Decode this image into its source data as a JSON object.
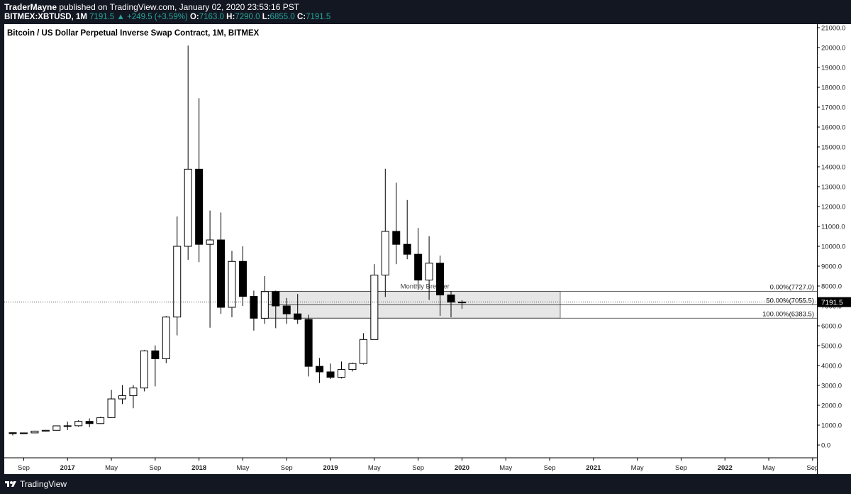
{
  "header": {
    "publisher": "TraderMayne",
    "published_text": "published on TradingView.com, January 02, 2020 23:53:16 PST",
    "symbol": "BITMEX:XBTUSD, 1M",
    "last": "7191.5",
    "change": "+249.5 (+3.59%)",
    "open_label": "O:",
    "open": "7163.0",
    "high_label": "H:",
    "high": "7290.0",
    "low_label": "L:",
    "low": "6855.0",
    "close_label": "C:",
    "close": "7191.5"
  },
  "footer": {
    "brand": "TradingView"
  },
  "colors": {
    "bull": "#ffffff",
    "bear": "#000000",
    "zone": "#e6e6e6",
    "price_tag": "#000000",
    "header_green": "#26a69a"
  },
  "chart_data": {
    "type": "candlestick",
    "title": "Bitcoin / US Dollar Perpetual Inverse Swap Contract, 1M, BITMEX",
    "ylim": [
      -500,
      21000
    ],
    "y_ticks": [
      "21000.0",
      "20000.0",
      "19000.0",
      "18000.0",
      "17000.0",
      "16000.0",
      "15000.0",
      "14000.0",
      "13000.0",
      "12000.0",
      "11000.0",
      "10000.0",
      "9000.0",
      "8000.0",
      "7000.0",
      "6000.0",
      "5000.0",
      "4000.0",
      "3000.0",
      "2000.0",
      "1000.0",
      "0.0"
    ],
    "x_ticks": [
      "Sep",
      "2017",
      "May",
      "Sep",
      "2018",
      "May",
      "Sep",
      "2019",
      "May",
      "Sep",
      "2020",
      "May",
      "Sep",
      "2021",
      "May",
      "Sep",
      "2022",
      "May",
      "Sep"
    ],
    "last_price": 7191.5,
    "last_price_label": "7191.5",
    "candles": [
      {
        "m": "2016-08",
        "o": 620,
        "h": 630,
        "l": 480,
        "c": 575
      },
      {
        "m": "2016-09",
        "o": 575,
        "h": 625,
        "l": 560,
        "c": 610
      },
      {
        "m": "2016-10",
        "o": 610,
        "h": 720,
        "l": 600,
        "c": 700
      },
      {
        "m": "2016-11",
        "o": 700,
        "h": 760,
        "l": 680,
        "c": 740
      },
      {
        "m": "2016-12",
        "o": 740,
        "h": 980,
        "l": 740,
        "c": 965
      },
      {
        "m": "2017-01",
        "o": 965,
        "h": 1180,
        "l": 750,
        "c": 970
      },
      {
        "m": "2017-02",
        "o": 970,
        "h": 1250,
        "l": 920,
        "c": 1190
      },
      {
        "m": "2017-03",
        "o": 1190,
        "h": 1340,
        "l": 900,
        "c": 1080
      },
      {
        "m": "2017-04",
        "o": 1080,
        "h": 1420,
        "l": 1060,
        "c": 1380
      },
      {
        "m": "2017-05",
        "o": 1380,
        "h": 2780,
        "l": 1360,
        "c": 2320
      },
      {
        "m": "2017-06",
        "o": 2320,
        "h": 3020,
        "l": 2060,
        "c": 2480
      },
      {
        "m": "2017-07",
        "o": 2480,
        "h": 3020,
        "l": 1850,
        "c": 2870
      },
      {
        "m": "2017-08",
        "o": 2870,
        "h": 4780,
        "l": 2700,
        "c": 4740
      },
      {
        "m": "2017-09",
        "o": 4740,
        "h": 5010,
        "l": 2950,
        "c": 4340
      },
      {
        "m": "2017-10",
        "o": 4340,
        "h": 6490,
        "l": 4120,
        "c": 6440
      },
      {
        "m": "2017-11",
        "o": 6440,
        "h": 11500,
        "l": 5520,
        "c": 10000
      },
      {
        "m": "2017-12",
        "o": 10000,
        "h": 20100,
        "l": 9320,
        "c": 13880
      },
      {
        "m": "2018-01",
        "o": 13880,
        "h": 17450,
        "l": 9200,
        "c": 10100
      },
      {
        "m": "2018-02",
        "o": 10100,
        "h": 11800,
        "l": 5900,
        "c": 10320
      },
      {
        "m": "2018-03",
        "o": 10320,
        "h": 11700,
        "l": 6600,
        "c": 6930
      },
      {
        "m": "2018-04",
        "o": 6930,
        "h": 9770,
        "l": 6430,
        "c": 9240
      },
      {
        "m": "2018-05",
        "o": 9240,
        "h": 10000,
        "l": 7000,
        "c": 7480
      },
      {
        "m": "2018-06",
        "o": 7480,
        "h": 7770,
        "l": 5760,
        "c": 6380
      },
      {
        "m": "2018-07",
        "o": 6380,
        "h": 8500,
        "l": 6100,
        "c": 7720
      },
      {
        "m": "2018-08",
        "o": 7720,
        "h": 7770,
        "l": 5880,
        "c": 7000
      },
      {
        "m": "2018-09",
        "o": 7000,
        "h": 7400,
        "l": 6100,
        "c": 6600
      },
      {
        "m": "2018-10",
        "o": 6600,
        "h": 7600,
        "l": 6100,
        "c": 6320
      },
      {
        "m": "2018-11",
        "o": 6320,
        "h": 6560,
        "l": 3450,
        "c": 3960
      },
      {
        "m": "2018-12",
        "o": 3960,
        "h": 4380,
        "l": 3120,
        "c": 3680
      },
      {
        "m": "2019-01",
        "o": 3680,
        "h": 4100,
        "l": 3320,
        "c": 3410
      },
      {
        "m": "2019-02",
        "o": 3410,
        "h": 4200,
        "l": 3350,
        "c": 3800
      },
      {
        "m": "2019-03",
        "o": 3800,
        "h": 4150,
        "l": 3700,
        "c": 4100
      },
      {
        "m": "2019-04",
        "o": 4100,
        "h": 5630,
        "l": 4050,
        "c": 5310
      },
      {
        "m": "2019-05",
        "o": 5310,
        "h": 9100,
        "l": 5300,
        "c": 8550
      },
      {
        "m": "2019-06",
        "o": 8550,
        "h": 13900,
        "l": 7450,
        "c": 10750
      },
      {
        "m": "2019-07",
        "o": 10750,
        "h": 13200,
        "l": 9100,
        "c": 10100
      },
      {
        "m": "2019-08",
        "o": 10100,
        "h": 12330,
        "l": 9350,
        "c": 9600
      },
      {
        "m": "2019-09",
        "o": 9600,
        "h": 10920,
        "l": 7800,
        "c": 8300
      },
      {
        "m": "2019-10",
        "o": 8300,
        "h": 10500,
        "l": 7300,
        "c": 9150
      },
      {
        "m": "2019-11",
        "o": 9150,
        "h": 9530,
        "l": 6500,
        "c": 7550
      },
      {
        "m": "2019-12",
        "o": 7550,
        "h": 7750,
        "l": 6430,
        "c": 7190
      },
      {
        "m": "2020-01",
        "o": 7163,
        "h": 7290,
        "l": 6855,
        "c": 7191.5
      }
    ],
    "annotations": {
      "zone_label": "Monthly Breaker",
      "fib_levels": [
        {
          "label": "0.00%(7727.0)",
          "price": 7727.0
        },
        {
          "label": "50.00%(7055.5)",
          "price": 7055.5
        },
        {
          "label": "100.00%(6383.5)",
          "price": 6383.5
        }
      ],
      "zone_top": 7727.0,
      "zone_bottom": 6383.5
    }
  }
}
